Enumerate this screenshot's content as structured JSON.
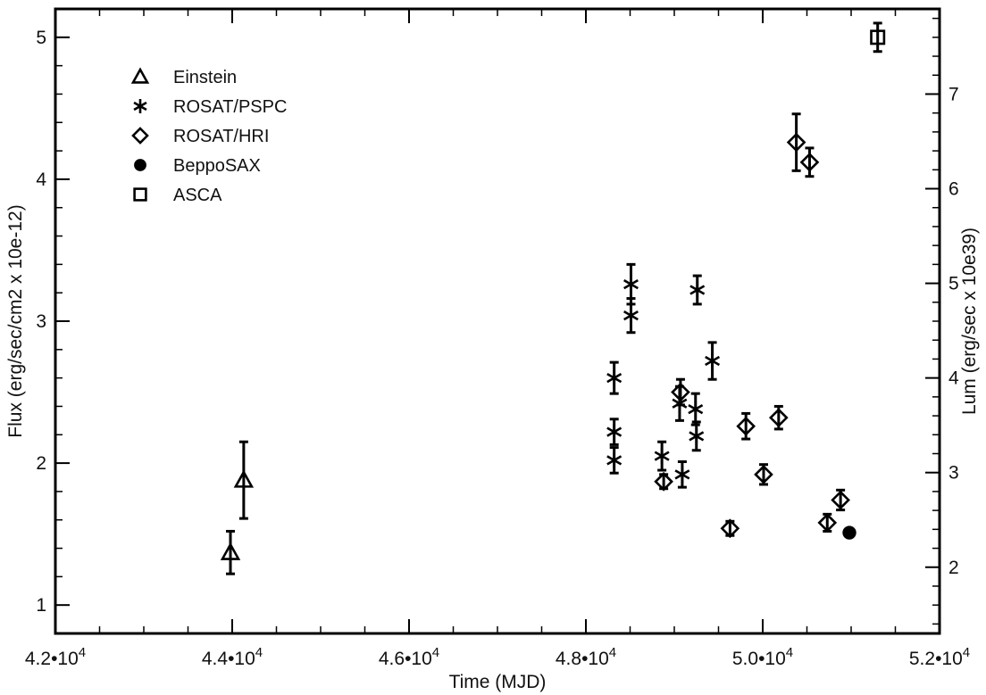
{
  "chart_data": {
    "type": "scatter",
    "xlabel": "Time (MJD)",
    "ylabel": "Flux (erg/sec/cm2 x 10e-12)",
    "y2label": "Lum (erg/sec x 10e39)",
    "xlim": [
      42000,
      52000
    ],
    "ylim": [
      0.8,
      5.2
    ],
    "y2lim": [
      1.3,
      7.9
    ],
    "grid": false,
    "legend_position": "top-left",
    "x_ticks": [
      {
        "value": 42000,
        "mant": "4.2",
        "exp": "4"
      },
      {
        "value": 44000,
        "mant": "4.4",
        "exp": "4"
      },
      {
        "value": 46000,
        "mant": "4.6",
        "exp": "4"
      },
      {
        "value": 48000,
        "mant": "4.8",
        "exp": "4"
      },
      {
        "value": 50000,
        "mant": "5.0",
        "exp": "4"
      },
      {
        "value": 52000,
        "mant": "5.2",
        "exp": "4"
      }
    ],
    "y_ticks": [
      {
        "value": 1,
        "label": "1"
      },
      {
        "value": 2,
        "label": "2"
      },
      {
        "value": 3,
        "label": "3"
      },
      {
        "value": 4,
        "label": "4"
      },
      {
        "value": 5,
        "label": "5"
      }
    ],
    "y2_ticks": [
      {
        "value": 2,
        "label": "2"
      },
      {
        "value": 3,
        "label": "3"
      },
      {
        "value": 4,
        "label": "4"
      },
      {
        "value": 5,
        "label": "5"
      },
      {
        "value": 6,
        "label": "6"
      },
      {
        "value": 7,
        "label": "7"
      }
    ],
    "series": [
      {
        "name": "Einstein",
        "marker": "triangle",
        "points": [
          {
            "x": 43980,
            "y": 1.37,
            "err": 0.15
          },
          {
            "x": 44130,
            "y": 1.88,
            "err": 0.27
          }
        ]
      },
      {
        "name": "ROSAT/PSPC",
        "marker": "asterisk",
        "points": [
          {
            "x": 48320,
            "y": 2.6,
            "err": 0.11
          },
          {
            "x": 48320,
            "y": 2.22,
            "err": 0.09
          },
          {
            "x": 48320,
            "y": 2.02,
            "err": 0.09
          },
          {
            "x": 48510,
            "y": 3.26,
            "err": 0.14
          },
          {
            "x": 48510,
            "y": 3.04,
            "err": 0.12
          },
          {
            "x": 48860,
            "y": 2.05,
            "err": 0.1
          },
          {
            "x": 49060,
            "y": 2.42,
            "err": 0.12
          },
          {
            "x": 49090,
            "y": 1.92,
            "err": 0.09
          },
          {
            "x": 49240,
            "y": 2.38,
            "err": 0.11
          },
          {
            "x": 49250,
            "y": 2.19,
            "err": 0.1
          },
          {
            "x": 49260,
            "y": 3.22,
            "err": 0.1
          },
          {
            "x": 49430,
            "y": 2.72,
            "err": 0.13
          }
        ]
      },
      {
        "name": "ROSAT/HRI",
        "marker": "diamond",
        "points": [
          {
            "x": 48880,
            "y": 1.87,
            "err": 0.05
          },
          {
            "x": 49070,
            "y": 2.5,
            "err": 0.09
          },
          {
            "x": 49630,
            "y": 1.54,
            "err": 0.05
          },
          {
            "x": 49810,
            "y": 2.26,
            "err": 0.09
          },
          {
            "x": 50010,
            "y": 1.92,
            "err": 0.07
          },
          {
            "x": 50180,
            "y": 2.32,
            "err": 0.08
          },
          {
            "x": 50380,
            "y": 4.26,
            "err": 0.2
          },
          {
            "x": 50530,
            "y": 4.12,
            "err": 0.1
          },
          {
            "x": 50730,
            "y": 1.58,
            "err": 0.06
          },
          {
            "x": 50880,
            "y": 1.74,
            "err": 0.07
          }
        ]
      },
      {
        "name": "BeppoSAX",
        "marker": "circle",
        "points": [
          {
            "x": 50980,
            "y": 1.51,
            "err": 0
          }
        ]
      },
      {
        "name": "ASCA",
        "marker": "square",
        "points": [
          {
            "x": 51300,
            "y": 5.0,
            "err": 0.1
          }
        ]
      }
    ]
  }
}
